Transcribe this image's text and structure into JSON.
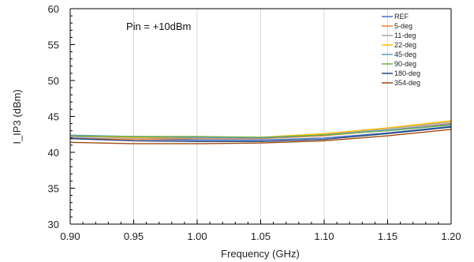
{
  "chart_data": {
    "type": "line",
    "annotation": "Pin = +10dBm",
    "xlabel": "Frequency  (GHz)",
    "ylabel": "I_IP3 (dBm)",
    "xlim": [
      0.9,
      1.2
    ],
    "ylim": [
      30,
      60
    ],
    "x_ticks": [
      "0.90",
      "0.95",
      "1.00",
      "1.05",
      "1.10",
      "1.15",
      "1.20"
    ],
    "y_ticks": [
      "30",
      "35",
      "40",
      "45",
      "50",
      "55",
      "60"
    ],
    "grid": "vertical",
    "legend_position": "top-right",
    "x": [
      0.9,
      0.95,
      1.0,
      1.05,
      1.1,
      1.15,
      1.2
    ],
    "series": [
      {
        "name": "REF",
        "color": "#4472C4",
        "values": [
          42.0,
          41.8,
          41.7,
          41.7,
          42.0,
          42.7,
          43.6
        ]
      },
      {
        "name": "5-deg",
        "color": "#ED7D31",
        "values": [
          41.9,
          41.8,
          41.9,
          41.9,
          42.3,
          43.1,
          44.0
        ]
      },
      {
        "name": "11-deg",
        "color": "#A5A5A5",
        "values": [
          42.2,
          42.0,
          42.0,
          42.0,
          42.5,
          43.3,
          44.2
        ]
      },
      {
        "name": "22-deg",
        "color": "#FFC000",
        "values": [
          42.3,
          42.1,
          42.1,
          42.1,
          42.6,
          43.4,
          44.4
        ]
      },
      {
        "name": "45-deg",
        "color": "#5B9BD5",
        "values": [
          42.4,
          42.2,
          42.1,
          42.0,
          42.4,
          43.1,
          43.9
        ]
      },
      {
        "name": "90-deg",
        "color": "#70AD47",
        "values": [
          42.3,
          42.2,
          42.2,
          42.1,
          42.4,
          43.0,
          43.8
        ]
      },
      {
        "name": "180-deg",
        "color": "#264478",
        "values": [
          41.9,
          41.6,
          41.5,
          41.5,
          41.8,
          42.6,
          43.5
        ]
      },
      {
        "name": "354-deg",
        "color": "#9E480E",
        "values": [
          41.4,
          41.2,
          41.2,
          41.3,
          41.6,
          42.3,
          43.2
        ]
      }
    ]
  }
}
